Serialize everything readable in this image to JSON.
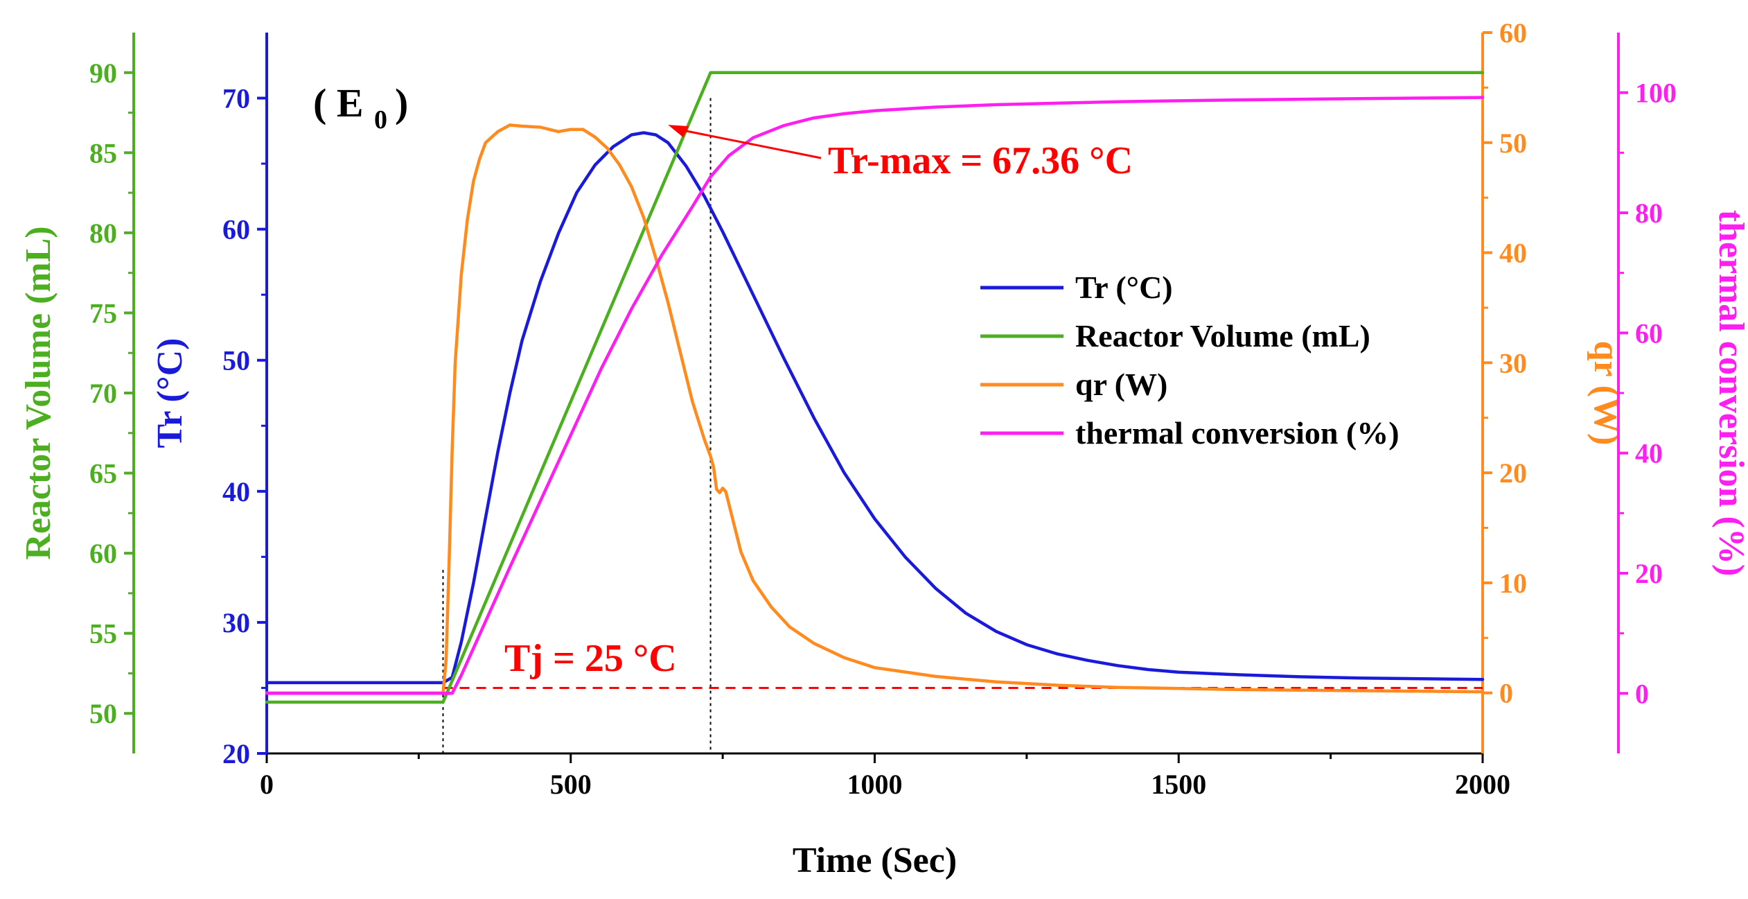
{
  "chart_data": {
    "type": "line",
    "title": "",
    "panel_label": "( E",
    "panel_label_sub": "0",
    "panel_label_close": ")",
    "xlabel": "Time (Sec)",
    "xlim": [
      0,
      2000
    ],
    "xticks": [
      0,
      500,
      1000,
      1500,
      2000
    ],
    "axes": {
      "tr": {
        "label": "Tr (°C)",
        "color": "#1a1adb",
        "range": [
          20,
          75
        ],
        "ticks": [
          20,
          30,
          40,
          50,
          60,
          70
        ]
      },
      "volume": {
        "label": "Reactor Volume (mL)",
        "color": "#4caf1f",
        "range": [
          47.5,
          92.5
        ],
        "ticks": [
          50,
          55,
          60,
          65,
          70,
          75,
          80,
          85,
          90
        ]
      },
      "qr": {
        "label": "qr (W)",
        "color": "#ff8a1e",
        "range": [
          -5.5,
          60
        ],
        "ticks": [
          0,
          10,
          20,
          30,
          40,
          50,
          60
        ]
      },
      "conversion": {
        "label": "thermal conversion (%)",
        "color": "#ff1ef0",
        "range": [
          -10,
          110
        ],
        "ticks": [
          0,
          20,
          40,
          60,
          80,
          100
        ]
      }
    },
    "series": [
      {
        "name": "Tr (°C)",
        "axis": "tr",
        "color": "#1a1adb",
        "x": [
          0,
          290,
          305,
          320,
          340,
          360,
          380,
          400,
          420,
          450,
          480,
          510,
          540,
          570,
          600,
          620,
          640,
          660,
          690,
          720,
          750,
          800,
          850,
          900,
          950,
          1000,
          1050,
          1100,
          1150,
          1200,
          1250,
          1300,
          1350,
          1400,
          1450,
          1500,
          1600,
          1700,
          1800,
          1900,
          2000
        ],
        "values": [
          25.4,
          25.4,
          25.8,
          28.5,
          33,
          38,
          43,
          47.5,
          51.5,
          56,
          59.7,
          62.8,
          64.9,
          66.3,
          67.2,
          67.36,
          67.2,
          66.6,
          64.8,
          62.5,
          59.8,
          55,
          50.2,
          45.6,
          41.4,
          37.9,
          35,
          32.6,
          30.7,
          29.3,
          28.3,
          27.6,
          27.1,
          26.7,
          26.4,
          26.2,
          26,
          25.85,
          25.75,
          25.7,
          25.65
        ]
      },
      {
        "name": "Reactor Volume (mL)",
        "axis": "volume",
        "color": "#4caf1f",
        "x": [
          0,
          290,
          730,
          2000
        ],
        "values": [
          50.7,
          50.7,
          90,
          90
        ]
      },
      {
        "name": "qr (W)",
        "axis": "qr",
        "color": "#ff8a1e",
        "x": [
          0,
          290,
          295,
          300,
          305,
          310,
          320,
          330,
          340,
          350,
          360,
          380,
          400,
          420,
          450,
          480,
          500,
          520,
          540,
          560,
          580,
          600,
          620,
          640,
          660,
          680,
          700,
          720,
          730,
          735,
          740,
          745,
          750,
          755,
          760,
          770,
          780,
          800,
          830,
          860,
          900,
          950,
          1000,
          1100,
          1200,
          1300,
          1400,
          1500,
          1600,
          1700,
          1800,
          1900,
          2000
        ],
        "values": [
          0,
          0,
          3,
          12,
          22,
          30,
          38,
          43,
          46.5,
          48.5,
          50,
          51,
          51.6,
          51.5,
          51.4,
          51,
          51.2,
          51.2,
          50.5,
          49.5,
          48,
          46,
          43.2,
          39.5,
          35.5,
          31,
          26.5,
          23,
          21.5,
          20.5,
          18.5,
          18.2,
          18.6,
          18.3,
          17.2,
          15,
          12.8,
          10.2,
          7.8,
          6,
          4.5,
          3.2,
          2.3,
          1.5,
          1,
          0.7,
          0.5,
          0.4,
          0.3,
          0.25,
          0.2,
          0.15,
          0.1
        ]
      },
      {
        "name": "thermal conversion (%)",
        "axis": "conversion",
        "color": "#ff1ef0",
        "x": [
          0,
          305,
          320,
          360,
          400,
          450,
          500,
          550,
          600,
          650,
          700,
          730,
          760,
          800,
          850,
          900,
          950,
          1000,
          1100,
          1200,
          1400,
          1600,
          1800,
          2000
        ],
        "values": [
          0,
          0,
          3,
          12,
          21,
          32,
          43,
          54,
          64,
          73,
          81,
          86,
          89.5,
          92.5,
          94.5,
          95.8,
          96.5,
          97,
          97.6,
          98,
          98.5,
          98.8,
          99,
          99.2
        ]
      }
    ],
    "reference_lines": [
      {
        "name": "Tj",
        "axis": "tr",
        "value": 25,
        "style": "dashed",
        "color": "#ff0000"
      },
      {
        "name": "dosing-start",
        "x": 290,
        "style": "dotted",
        "color": "#000000"
      },
      {
        "name": "dosing-end",
        "x": 730,
        "style": "dotted",
        "color": "#000000"
      }
    ],
    "annotations": [
      {
        "text": "Tr-max = 67.36 °C",
        "color": "#ff0000",
        "x": 620,
        "y": 67.36,
        "axis": "tr"
      },
      {
        "text": "Tj = 25 °C",
        "color": "#ff0000"
      }
    ],
    "legend": {
      "position": "right-center",
      "entries": [
        "Tr (°C)",
        "Reactor Volume (mL)",
        "qr (W)",
        "thermal conversion (%)"
      ]
    }
  }
}
